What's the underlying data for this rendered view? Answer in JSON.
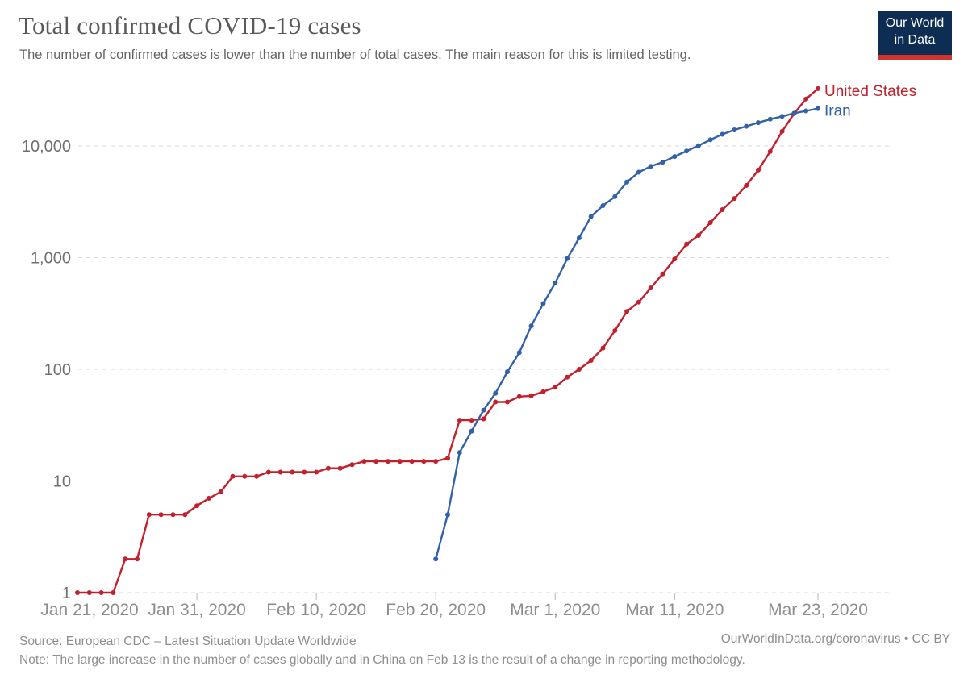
{
  "header": {
    "title": "Total confirmed COVID-19 cases",
    "subtitle": "The number of confirmed cases is lower than the number of total cases. The main reason for this is limited testing.",
    "logo": {
      "line1": "Our World",
      "line2": "in Data"
    }
  },
  "footer": {
    "source": "Source: European CDC – Latest Situation Update Worldwide",
    "note": "Note: The large increase in the number of cases globally and in China on Feb 13 is the result of a change in reporting methodology.",
    "attribution": "OurWorldInData.org/coronavirus • CC BY"
  },
  "colors": {
    "united_states": "#c2202d",
    "iran": "#3261a8",
    "gridline": "#dadada",
    "logo_navy": "#0d2d52",
    "logo_red": "#d0342c"
  },
  "chart_data": {
    "type": "line",
    "title": "Total confirmed COVID-19 cases",
    "y_scale": "log",
    "ylim": [
      1,
      40000
    ],
    "grid": "horizontal-dashed",
    "legend_position": "line-end-labels",
    "x_dates": [
      "Jan 21",
      "Jan 22",
      "Jan 23",
      "Jan 24",
      "Jan 25",
      "Jan 26",
      "Jan 27",
      "Jan 28",
      "Jan 29",
      "Jan 30",
      "Jan 31",
      "Feb 1",
      "Feb 2",
      "Feb 3",
      "Feb 4",
      "Feb 5",
      "Feb 6",
      "Feb 7",
      "Feb 8",
      "Feb 9",
      "Feb 10",
      "Feb 11",
      "Feb 12",
      "Feb 13",
      "Feb 14",
      "Feb 15",
      "Feb 16",
      "Feb 17",
      "Feb 18",
      "Feb 19",
      "Feb 20",
      "Feb 21",
      "Feb 22",
      "Feb 23",
      "Feb 24",
      "Feb 25",
      "Feb 26",
      "Feb 27",
      "Feb 28",
      "Feb 29",
      "Mar 1",
      "Mar 2",
      "Mar 3",
      "Mar 4",
      "Mar 5",
      "Mar 6",
      "Mar 7",
      "Mar 8",
      "Mar 9",
      "Mar 10",
      "Mar 11",
      "Mar 12",
      "Mar 13",
      "Mar 14",
      "Mar 15",
      "Mar 16",
      "Mar 17",
      "Mar 18",
      "Mar 19",
      "Mar 20",
      "Mar 21",
      "Mar 22",
      "Mar 23"
    ],
    "x_ticks": [
      {
        "label": "Jan 21, 2020",
        "day": 0
      },
      {
        "label": "Jan 31, 2020",
        "day": 10
      },
      {
        "label": "Feb 10, 2020",
        "day": 20
      },
      {
        "label": "Feb 20, 2020",
        "day": 30
      },
      {
        "label": "Mar 1, 2020",
        "day": 40
      },
      {
        "label": "Mar 11, 2020",
        "day": 50
      },
      {
        "label": "Mar 23, 2020",
        "day": 62
      }
    ],
    "y_ticks": [
      {
        "label": "1",
        "value": 1
      },
      {
        "label": "10",
        "value": 10
      },
      {
        "label": "100",
        "value": 100
      },
      {
        "label": "1,000",
        "value": 1000
      },
      {
        "label": "10,000",
        "value": 10000
      }
    ],
    "series": [
      {
        "name": "United States",
        "color": "#c2202d",
        "start_day": 0,
        "values": [
          1,
          1,
          1,
          1,
          2,
          2,
          5,
          5,
          5,
          5,
          6,
          7,
          8,
          11,
          11,
          11,
          12,
          12,
          12,
          12,
          12,
          13,
          13,
          14,
          15,
          15,
          15,
          15,
          15,
          15,
          15,
          16,
          35,
          35,
          36,
          51,
          51,
          57,
          58,
          63,
          69,
          85,
          100,
          120,
          155,
          222,
          330,
          400,
          535,
          715,
          970,
          1320,
          1580,
          2060,
          2690,
          3390,
          4430,
          6080,
          8920,
          13500,
          19500,
          26300,
          32600
        ]
      },
      {
        "name": "Iran",
        "color": "#3261a8",
        "start_day": 30,
        "values": [
          2,
          5,
          18,
          28,
          43,
          61,
          95,
          141,
          245,
          388,
          593,
          978,
          1501,
          2336,
          2922,
          3513,
          4747,
          5823,
          6566,
          7161,
          8042,
          9000,
          10075,
          11364,
          12729,
          13938,
          14991,
          16169,
          17361,
          18407,
          19644,
          20610,
          21638
        ]
      }
    ]
  }
}
